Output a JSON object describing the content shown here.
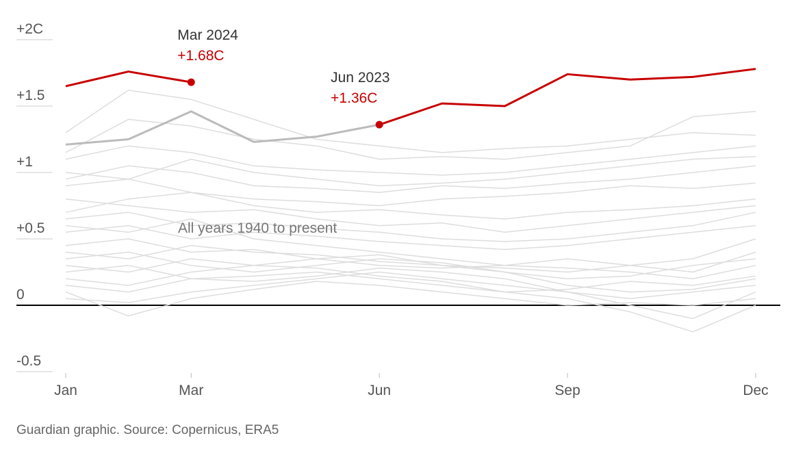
{
  "chart_data": {
    "type": "line",
    "categories": [
      "Jan",
      null,
      "Mar",
      null,
      null,
      "Jun",
      null,
      null,
      "Sep",
      null,
      null,
      "Dec"
    ],
    "ylim": [
      -0.5,
      2
    ],
    "yticks": [
      {
        "value": 2,
        "label": "+2C"
      },
      {
        "value": 1.5,
        "label": "+1.5"
      },
      {
        "value": 1,
        "label": "+1"
      },
      {
        "value": 0.5,
        "label": "+0.5"
      },
      0,
      {
        "value": -0.5,
        "label": "-0.5"
      }
    ],
    "annotation": "All years 1940 to present",
    "source": "Guardian graphic. Source: Copernicus, ERA5",
    "series": [
      {
        "color": "#dddddd",
        "values": [
          0.05,
          0.02,
          0.1,
          0.15,
          0.2,
          0.25,
          0.2,
          0.15,
          0.1,
          0.05,
          0.1,
          0.15
        ]
      },
      {
        "color": "#dddddd",
        "values": [
          0.3,
          0.25,
          0.35,
          0.3,
          0.28,
          0.22,
          0.18,
          0.1,
          0.05,
          -0.05,
          -0.2,
          0.0
        ]
      },
      {
        "color": "#dddddd",
        "values": [
          0.45,
          0.5,
          0.4,
          0.42,
          0.35,
          0.38,
          0.3,
          0.25,
          0.2,
          0.22,
          0.3,
          0.35
        ]
      },
      {
        "color": "#dddddd",
        "values": [
          0.6,
          0.55,
          0.65,
          0.5,
          0.45,
          0.4,
          0.35,
          0.3,
          0.28,
          0.25,
          0.2,
          0.3
        ]
      },
      {
        "color": "#dddddd",
        "values": [
          0.2,
          0.15,
          0.25,
          0.3,
          0.35,
          0.3,
          0.28,
          0.3,
          0.35,
          0.3,
          0.25,
          0.4
        ]
      },
      {
        "color": "#dddddd",
        "values": [
          0.8,
          0.75,
          0.7,
          0.72,
          0.65,
          0.6,
          0.62,
          0.55,
          0.6,
          0.65,
          0.7,
          0.75
        ]
      },
      {
        "color": "#dddddd",
        "values": [
          0.9,
          0.95,
          0.85,
          0.8,
          0.78,
          0.75,
          0.8,
          0.82,
          0.85,
          0.9,
          0.88,
          0.92
        ]
      },
      {
        "color": "#dddddd",
        "values": [
          1.0,
          0.95,
          1.1,
          1.0,
          0.95,
          0.9,
          0.92,
          0.95,
          1.0,
          1.05,
          1.1,
          1.12
        ]
      },
      {
        "color": "#dddddd",
        "values": [
          1.3,
          1.62,
          1.55,
          1.4,
          1.25,
          1.2,
          1.15,
          1.18,
          1.2,
          1.25,
          1.3,
          1.28
        ]
      },
      {
        "color": "#dddddd",
        "values": [
          1.15,
          1.4,
          1.35,
          1.25,
          1.2,
          1.1,
          1.12,
          1.1,
          1.15,
          1.2,
          1.42,
          1.46
        ]
      },
      {
        "color": "#dddddd",
        "values": [
          0.1,
          -0.08,
          0.05,
          0.12,
          0.18,
          0.15,
          0.1,
          0.05,
          0.0,
          0.02,
          0.0,
          0.05
        ]
      },
      {
        "color": "#dddddd",
        "values": [
          0.35,
          0.4,
          0.3,
          0.25,
          0.3,
          0.35,
          0.32,
          0.25,
          0.15,
          0.1,
          0.12,
          0.2
        ]
      },
      {
        "color": "#dddddd",
        "values": [
          0.55,
          0.6,
          0.5,
          0.55,
          0.52,
          0.48,
          0.45,
          0.42,
          0.45,
          0.5,
          0.55,
          0.6
        ]
      },
      {
        "color": "#dddddd",
        "values": [
          0.7,
          0.8,
          0.85,
          0.75,
          0.7,
          0.72,
          0.68,
          0.65,
          0.7,
          0.72,
          0.75,
          0.8
        ]
      },
      {
        "color": "#dddddd",
        "values": [
          0.25,
          0.3,
          0.2,
          0.18,
          0.22,
          0.28,
          0.25,
          0.2,
          0.1,
          0.0,
          -0.1,
          0.1
        ]
      },
      {
        "color": "#dddddd",
        "values": [
          0.4,
          0.35,
          0.45,
          0.4,
          0.38,
          0.33,
          0.3,
          0.28,
          0.25,
          0.3,
          0.35,
          0.5
        ]
      },
      {
        "color": "#dddddd",
        "values": [
          0.95,
          1.05,
          1.0,
          0.9,
          0.88,
          0.85,
          0.9,
          0.88,
          0.92,
          0.95,
          1.0,
          1.05
        ]
      },
      {
        "color": "#dddddd",
        "values": [
          0.15,
          0.1,
          0.2,
          0.22,
          0.25,
          0.2,
          0.15,
          0.1,
          0.12,
          0.18,
          0.15,
          0.22
        ]
      },
      {
        "color": "#dddddd",
        "values": [
          0.65,
          0.7,
          0.6,
          0.62,
          0.58,
          0.55,
          0.5,
          0.48,
          0.5,
          0.55,
          0.6,
          0.7
        ]
      },
      {
        "color": "#dddddd",
        "values": [
          1.1,
          1.2,
          1.15,
          1.05,
          1.02,
          1.0,
          0.98,
          1.0,
          1.05,
          1.1,
          1.15,
          1.2
        ]
      },
      {
        "color": "#bbbbbb",
        "values": [
          1.21,
          1.25,
          1.46,
          1.23,
          1.27,
          1.36,
          null,
          null,
          null,
          null,
          null,
          null
        ]
      },
      {
        "color": "#c70000",
        "values": [
          null,
          null,
          null,
          null,
          null,
          1.36,
          1.52,
          1.5,
          1.74,
          1.7,
          1.72,
          1.78
        ],
        "point_titles": [
          null,
          null,
          null,
          null,
          null,
          "Jun 2023",
          null,
          null,
          null,
          null,
          null,
          null
        ],
        "value_labels": [
          null,
          null,
          null,
          null,
          null,
          "+1.36C",
          null,
          null,
          null,
          null,
          null,
          null
        ]
      },
      {
        "color": "#c70000",
        "values": [
          1.65,
          1.76,
          1.68,
          null,
          null,
          null,
          null,
          null,
          null,
          null,
          null,
          null
        ],
        "point_titles": [
          null,
          null,
          "Mar 2024",
          null,
          null,
          null,
          null,
          null,
          null,
          null,
          null,
          null
        ],
        "value_labels": [
          null,
          null,
          "+1.68C",
          null,
          null,
          null,
          null,
          null,
          null,
          null,
          null,
          null
        ]
      }
    ]
  }
}
